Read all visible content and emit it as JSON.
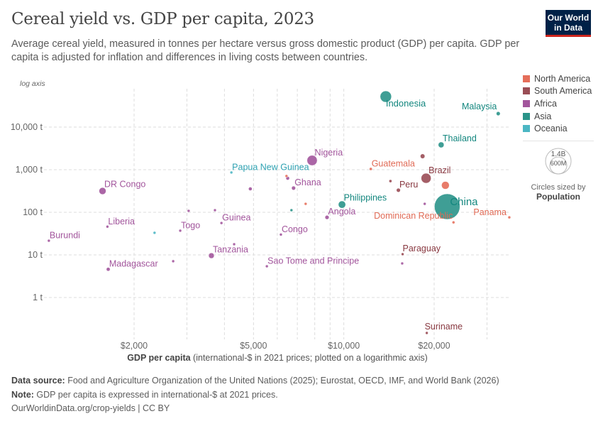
{
  "title": "Cereal yield vs. GDP per capita, 2023",
  "subtitle": "Average cereal yield, measured in tonnes per hectare versus gross domestic product (GDP) per capita. GDP per capita is adjusted for inflation and differences in living costs between countries.",
  "logo": {
    "line1": "Our World",
    "line2": "in Data"
  },
  "colors": {
    "North America": "#E56E5A",
    "South America": "#9A4D55",
    "Africa": "#A2559C",
    "Asia": "#2A9489",
    "Oceania": "#4BB6C3"
  },
  "label_colors": {
    "North America": "#E06A55",
    "South America": "#883840",
    "Africa": "#A2559C",
    "Asia": "#12867E",
    "Oceania": "#2FA2B2"
  },
  "legend": [
    "North America",
    "South America",
    "Africa",
    "Asia",
    "Oceania"
  ],
  "size_legend": {
    "big": "1.4B",
    "small": "600M",
    "caption": "Circles sized by",
    "variable": "Population"
  },
  "chart_data": {
    "type": "scatter",
    "title": "Cereal yield vs. GDP per capita, 2023",
    "xlabel_bold": "GDP per capita",
    "xlabel_rest": " (international-$ in 2021 prices; plotted on a logarithmic axis)",
    "ylabel": "log axis",
    "x_scale": "log",
    "y_scale": "log",
    "xlim": [
      1000,
      36500
    ],
    "ylim": [
      0.13,
      95000
    ],
    "x_ticks": [
      {
        "v": 2000,
        "label": "$2,000"
      },
      {
        "v": 5000,
        "label": "$5,000"
      },
      {
        "v": 10000,
        "label": "$10,000"
      },
      {
        "v": 20000,
        "label": "$20,000"
      }
    ],
    "x_grid": [
      2000,
      3000,
      4000,
      5000,
      6000,
      7000,
      8000,
      9000,
      10000,
      20000,
      30000
    ],
    "y_ticks": [
      {
        "v": 1,
        "label": "1 t"
      },
      {
        "v": 10,
        "label": "10 t"
      },
      {
        "v": 100,
        "label": "100 t"
      },
      {
        "v": 1000,
        "label": "1,000 t"
      },
      {
        "v": 10000,
        "label": "10,000 t"
      }
    ],
    "grid": true,
    "legend_position": "right",
    "points": [
      {
        "name": "Indonesia",
        "label": "Indonesia",
        "x": 13800,
        "y": 52000,
        "pop": 280,
        "region": "Asia"
      },
      {
        "name": "Malaysia",
        "label": "Malaysia",
        "x": 32700,
        "y": 20700,
        "pop": 34,
        "region": "Asia"
      },
      {
        "name": "Thailand",
        "label": "Thailand",
        "x": 21100,
        "y": 3830,
        "pop": 72,
        "region": "Asia"
      },
      {
        "name": "",
        "label": "",
        "x": 18300,
        "y": 2070,
        "pop": 46,
        "region": "South America"
      },
      {
        "name": "Nigeria",
        "label": "Nigeria",
        "x": 7840,
        "y": 1650,
        "pop": 225,
        "region": "Africa"
      },
      {
        "name": "Guatemala",
        "label": "Guatemala",
        "x": 12300,
        "y": 1040,
        "pop": 18,
        "region": "North America"
      },
      {
        "name": "Papua New Guinea",
        "label": "Papua New Guinea",
        "x": 4220,
        "y": 860,
        "pop": 10,
        "region": "Oceania"
      },
      {
        "name": "",
        "label": "",
        "x": 6440,
        "y": 710,
        "pop": 10,
        "region": "North America"
      },
      {
        "name": "",
        "label": "",
        "x": 6500,
        "y": 630,
        "pop": 28,
        "region": "Africa"
      },
      {
        "name": "Brazil",
        "label": "Brazil",
        "x": 18800,
        "y": 630,
        "pop": 215,
        "region": "South America"
      },
      {
        "name": "",
        "label": "",
        "x": 14300,
        "y": 540,
        "pop": 18,
        "region": "South America"
      },
      {
        "name": "",
        "label": "",
        "x": 4880,
        "y": 355,
        "pop": 28,
        "region": "Africa"
      },
      {
        "name": "Ghana",
        "label": "Ghana",
        "x": 6800,
        "y": 370,
        "pop": 34,
        "region": "Africa"
      },
      {
        "name": "",
        "label": "",
        "x": 21800,
        "y": 430,
        "pop": 130,
        "region": "North America"
      },
      {
        "name": "Peru",
        "label": "Peru",
        "x": 15200,
        "y": 330,
        "pop": 34,
        "region": "South America"
      },
      {
        "name": "DR Congo",
        "label": "DR Congo",
        "x": 1570,
        "y": 316,
        "pop": 105,
        "region": "Africa"
      },
      {
        "name": "",
        "label": "",
        "x": 7460,
        "y": 158,
        "pop": 11,
        "region": "North America"
      },
      {
        "name": "Philippines",
        "label": "Philippines",
        "x": 9860,
        "y": 152,
        "pop": 115,
        "region": "Asia"
      },
      {
        "name": "",
        "label": "",
        "x": 18600,
        "y": 158,
        "pop": 13,
        "region": "Africa"
      },
      {
        "name": "China",
        "label": "China",
        "x": 22100,
        "y": 136,
        "pop": 1410,
        "region": "Asia"
      },
      {
        "name": "",
        "label": "",
        "x": 6690,
        "y": 112,
        "pop": 10,
        "region": "Asia"
      },
      {
        "name": "",
        "label": "",
        "x": 3040,
        "y": 108,
        "pop": 10,
        "region": "Africa"
      },
      {
        "name": "",
        "label": "",
        "x": 3720,
        "y": 112,
        "pop": 13,
        "region": "Africa"
      },
      {
        "name": "Angola",
        "label": "Angola",
        "x": 8790,
        "y": 76,
        "pop": 36,
        "region": "Africa"
      },
      {
        "name": "Panama",
        "label": "Panama",
        "x": 35600,
        "y": 76,
        "pop": 4.5,
        "region": "North America"
      },
      {
        "name": "Dominican Republic",
        "label": "Dominican Republic",
        "x": 23200,
        "y": 58,
        "pop": 11,
        "region": "North America"
      },
      {
        "name": "Guinea",
        "label": "Guinea",
        "x": 3910,
        "y": 56,
        "pop": 14,
        "region": "Africa"
      },
      {
        "name": "Liberia",
        "label": "Liberia",
        "x": 1630,
        "y": 46,
        "pop": 5.4,
        "region": "Africa"
      },
      {
        "name": "Togo",
        "label": "Togo",
        "x": 2850,
        "y": 37,
        "pop": 9,
        "region": "Africa"
      },
      {
        "name": "",
        "label": "",
        "x": 2340,
        "y": 33,
        "pop": 7,
        "region": "Oceania"
      },
      {
        "name": "Congo",
        "label": "Congo",
        "x": 6170,
        "y": 30,
        "pop": 6,
        "region": "Africa"
      },
      {
        "name": "Burundi",
        "label": "Burundi",
        "x": 1040,
        "y": 21.5,
        "pop": 13,
        "region": "Africa"
      },
      {
        "name": "",
        "label": "",
        "x": 4310,
        "y": 17.8,
        "pop": 12,
        "region": "Africa"
      },
      {
        "name": "Paraguay",
        "label": "Paraguay",
        "x": 15700,
        "y": 10.4,
        "pop": 6.8,
        "region": "South America"
      },
      {
        "name": "Tanzania",
        "label": "Tanzania",
        "x": 3620,
        "y": 9.6,
        "pop": 67,
        "region": "Africa"
      },
      {
        "name": "",
        "label": "",
        "x": 2700,
        "y": 7.1,
        "pop": 8,
        "region": "Africa"
      },
      {
        "name": "",
        "label": "",
        "x": 15650,
        "y": 6.3,
        "pop": 2,
        "region": "Africa"
      },
      {
        "name": "Sao Tome and Principe",
        "label": "Sao Tome and Principe",
        "x": 5540,
        "y": 5.4,
        "pop": 0.2,
        "region": "Africa"
      },
      {
        "name": "Madagascar",
        "label": "Madagascar",
        "x": 1640,
        "y": 4.6,
        "pop": 30,
        "region": "Africa"
      },
      {
        "name": "Suriname",
        "label": "Suriname",
        "x": 18900,
        "y": 0.147,
        "pop": 0.6,
        "region": "South America"
      }
    ]
  },
  "footer": {
    "source_label": "Data source:",
    "source": " Food and Agriculture Organization of the United Nations (2025); Eurostat, OECD, IMF, and World Bank (2026)",
    "note_label": "Note:",
    "note": " GDP per capita is expressed in international-$ at 2021 prices.",
    "url": "OurWorldinData.org/crop-yields | CC BY"
  }
}
